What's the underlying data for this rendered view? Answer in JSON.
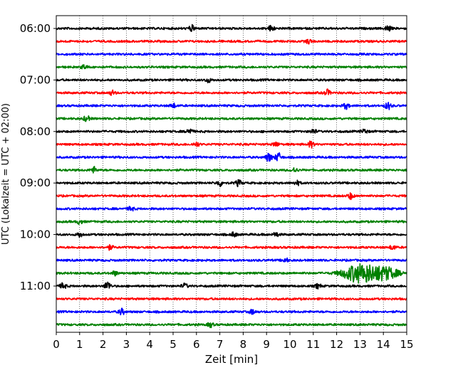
{
  "chart_data": {
    "type": "line",
    "xlabel": "Zeit  [min]",
    "ylabel": "UTC (Lokalzeit = UTC + 02:00)",
    "xlim": [
      0,
      15
    ],
    "x_ticks": [
      "0",
      "1",
      "2",
      "3",
      "4",
      "5",
      "6",
      "7",
      "8",
      "9",
      "10",
      "11",
      "12",
      "13",
      "14",
      "15"
    ],
    "y_ticks": [
      "06:00",
      "07:00",
      "08:00",
      "09:00",
      "10:00",
      "11:00"
    ],
    "vertical_grid": true,
    "grid_style": "dotted",
    "trace_interval_min": 15,
    "trace_color_cycle": [
      "#000000",
      "#ff0000",
      "#0000ff",
      "#008000"
    ],
    "traces": [
      {
        "start": "06:00",
        "color": "#000000",
        "events": [
          {
            "t": 5.8,
            "amp": 4
          },
          {
            "t": 9.2,
            "amp": 4
          },
          {
            "t": 14.2,
            "amp": 4
          }
        ]
      },
      {
        "start": "06:15",
        "color": "#ff0000",
        "events": [
          {
            "t": 10.8,
            "amp": 3
          }
        ]
      },
      {
        "start": "06:30",
        "color": "#0000ff",
        "events": []
      },
      {
        "start": "06:45",
        "color": "#008000",
        "events": [
          {
            "t": 1.2,
            "amp": 3
          }
        ]
      },
      {
        "start": "07:00",
        "color": "#000000",
        "events": [
          {
            "t": 6.5,
            "amp": 3
          }
        ]
      },
      {
        "start": "07:15",
        "color": "#ff0000",
        "events": [
          {
            "t": 2.4,
            "amp": 3
          },
          {
            "t": 11.6,
            "amp": 4
          }
        ]
      },
      {
        "start": "07:30",
        "color": "#0000ff",
        "events": [
          {
            "t": 5.0,
            "amp": 3
          },
          {
            "t": 12.4,
            "amp": 4
          },
          {
            "t": 14.2,
            "amp": 5
          }
        ]
      },
      {
        "start": "07:45",
        "color": "#008000",
        "events": [
          {
            "t": 1.3,
            "amp": 4
          }
        ]
      },
      {
        "start": "08:00",
        "color": "#000000",
        "events": [
          {
            "t": 5.7,
            "amp": 4
          },
          {
            "t": 11.0,
            "amp": 3
          },
          {
            "t": 13.2,
            "amp": 3
          }
        ]
      },
      {
        "start": "08:15",
        "color": "#ff0000",
        "events": [
          {
            "t": 6.0,
            "amp": 3
          },
          {
            "t": 9.4,
            "amp": 3
          },
          {
            "t": 10.9,
            "amp": 4
          }
        ]
      },
      {
        "start": "08:30",
        "color": "#0000ff",
        "events": [
          {
            "t": 9.1,
            "amp": 6
          },
          {
            "t": 9.5,
            "amp": 6
          }
        ]
      },
      {
        "start": "08:45",
        "color": "#008000",
        "events": [
          {
            "t": 1.6,
            "amp": 4
          },
          {
            "t": 10.2,
            "amp": 3
          }
        ]
      },
      {
        "start": "09:00",
        "color": "#000000",
        "events": [
          {
            "t": 7.0,
            "amp": 4
          },
          {
            "t": 7.8,
            "amp": 4
          },
          {
            "t": 10.3,
            "amp": 3
          }
        ]
      },
      {
        "start": "09:15",
        "color": "#ff0000",
        "events": [
          {
            "t": 12.6,
            "amp": 4
          }
        ]
      },
      {
        "start": "09:30",
        "color": "#0000ff",
        "events": [
          {
            "t": 3.2,
            "amp": 3
          }
        ]
      },
      {
        "start": "09:45",
        "color": "#008000",
        "events": [
          {
            "t": 1.0,
            "amp": 3
          }
        ]
      },
      {
        "start": "10:00",
        "color": "#000000",
        "events": [
          {
            "t": 1.0,
            "amp": 3
          },
          {
            "t": 7.6,
            "amp": 3
          },
          {
            "t": 9.4,
            "amp": 3
          }
        ]
      },
      {
        "start": "10:15",
        "color": "#ff0000",
        "events": [
          {
            "t": 2.3,
            "amp": 3
          },
          {
            "t": 14.4,
            "amp": 3
          }
        ]
      },
      {
        "start": "10:30",
        "color": "#0000ff",
        "events": [
          {
            "t": 9.8,
            "amp": 3
          }
        ]
      },
      {
        "start": "10:45",
        "color": "#008000",
        "events": [
          {
            "t": 2.5,
            "amp": 3
          },
          {
            "t": 12.7,
            "amp": 8
          },
          {
            "t": 13.3,
            "amp": 9
          },
          {
            "t": 14.1,
            "amp": 8
          }
        ]
      },
      {
        "start": "11:00",
        "color": "#000000",
        "events": [
          {
            "t": 0.3,
            "amp": 4
          },
          {
            "t": 2.2,
            "amp": 6
          },
          {
            "t": 5.5,
            "amp": 3
          },
          {
            "t": 11.2,
            "amp": 3
          }
        ]
      },
      {
        "start": "11:15",
        "color": "#ff0000",
        "events": []
      },
      {
        "start": "11:30",
        "color": "#0000ff",
        "events": [
          {
            "t": 2.8,
            "amp": 4
          },
          {
            "t": 8.4,
            "amp": 3
          }
        ]
      },
      {
        "start": "11:45",
        "color": "#008000",
        "events": [
          {
            "t": 6.6,
            "amp": 3
          }
        ]
      }
    ]
  }
}
